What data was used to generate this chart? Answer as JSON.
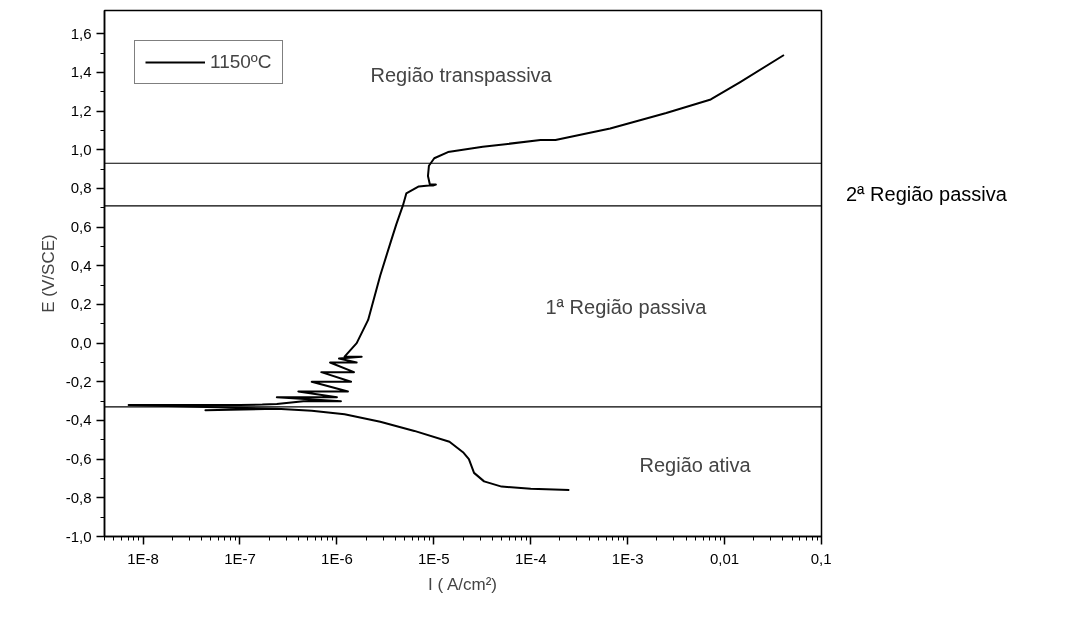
{
  "chart_data": {
    "type": "line",
    "xlabel": "I ( A/cm²)",
    "ylabel": "E (V/SCE)",
    "log": "x",
    "xlim": [
      4e-09,
      0.1
    ],
    "ylim": [
      -1.0,
      1.72
    ],
    "xticks": [
      {
        "value": 1e-08,
        "label": "1E-8"
      },
      {
        "value": 1e-07,
        "label": "1E-7"
      },
      {
        "value": 1e-06,
        "label": "1E-6"
      },
      {
        "value": 1e-05,
        "label": "1E-5"
      },
      {
        "value": 0.0001,
        "label": "1E-4"
      },
      {
        "value": 0.001,
        "label": "1E-3"
      },
      {
        "value": 0.01,
        "label": "0,01"
      },
      {
        "value": 0.1,
        "label": "0,1"
      }
    ],
    "yticks": [
      {
        "value": -1.0,
        "label": "-1,0"
      },
      {
        "value": -0.8,
        "label": "-0,8"
      },
      {
        "value": -0.6,
        "label": "-0,6"
      },
      {
        "value": -0.4,
        "label": "-0,4"
      },
      {
        "value": -0.2,
        "label": "-0,2"
      },
      {
        "value": 0.0,
        "label": "0,0"
      },
      {
        "value": 0.2,
        "label": "0,2"
      },
      {
        "value": 0.4,
        "label": "0,4"
      },
      {
        "value": 0.6,
        "label": "0,6"
      },
      {
        "value": 0.8,
        "label": "0,8"
      },
      {
        "value": 1.0,
        "label": "1,0"
      },
      {
        "value": 1.2,
        "label": "1,2"
      },
      {
        "value": 1.4,
        "label": "1,4"
      },
      {
        "value": 1.6,
        "label": "1,6"
      }
    ],
    "grid": false,
    "legend": "top left",
    "marker": "none",
    "line_style": "solid",
    "series": [
      {
        "name": "1150ºC",
        "color": "#000000",
        "x": [
          0.00025,
          0.0001,
          5e-05,
          3.3e-05,
          2.6e-05,
          2.3e-05,
          2e-05,
          1.45e-05,
          6.3e-06,
          2.8e-06,
          1.2e-06,
          5.5e-07,
          2.4e-07,
          4.4e-08,
          2.4e-07,
          7.1e-09,
          1e-07,
          1.7e-07,
          2.4e-07,
          4.5e-07,
          1.1e-06,
          2.4e-07,
          1e-06,
          4e-07,
          1.3e-06,
          5.5e-07,
          1.4e-06,
          6.9e-07,
          1.5e-06,
          8.5e-07,
          1.6e-06,
          1.05e-06,
          1.8e-06,
          1.2e-06,
          1.6e-06,
          2.1e-06,
          2.8e-06,
          3.6e-06,
          4.1e-06,
          4.8e-06,
          5.2e-06,
          7e-06,
          8.9e-06,
          9.8e-06,
          1.05e-05,
          9.1e-06,
          8.7e-06,
          8.9e-06,
          1.01e-05,
          1.4e-05,
          3.2e-05,
          0.000126,
          0.00018,
          0.00066,
          0.0025,
          0.0072,
          0.0145,
          0.041
        ],
        "values": [
          -0.76,
          -0.753,
          -0.742,
          -0.715,
          -0.671,
          -0.6,
          -0.564,
          -0.51,
          -0.454,
          -0.407,
          -0.368,
          -0.35,
          -0.34,
          -0.347,
          -0.34,
          -0.32,
          -0.32,
          -0.318,
          -0.315,
          -0.3,
          -0.3,
          -0.28,
          -0.28,
          -0.25,
          -0.25,
          -0.2,
          -0.2,
          -0.15,
          -0.15,
          -0.1,
          -0.1,
          -0.08,
          -0.07,
          -0.07,
          0.0,
          0.12,
          0.35,
          0.525,
          0.614,
          0.712,
          0.774,
          0.81,
          0.815,
          0.815,
          0.82,
          0.82,
          0.864,
          0.917,
          0.956,
          0.988,
          1.015,
          1.05,
          1.05,
          1.11,
          1.19,
          1.26,
          1.35,
          1.49
        ]
      }
    ],
    "ref_lines": [
      {
        "axis": "y",
        "value": 0.93
      },
      {
        "axis": "y",
        "value": 0.71
      },
      {
        "axis": "y",
        "value": -0.33
      }
    ],
    "annotations": [
      "Região transpassiva",
      "2ª Região passiva",
      "1ª Região passiva",
      "Região ativa"
    ]
  }
}
